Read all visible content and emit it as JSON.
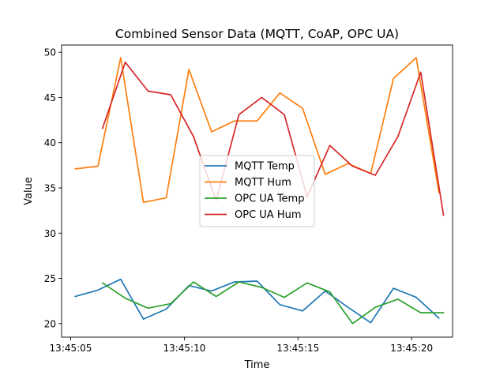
{
  "chart_data": {
    "type": "line",
    "title": "Combined Sensor Data (MQTT, CoAP, OPC UA)",
    "xlabel": "Time",
    "ylabel": "Value",
    "x_tick_labels": [
      "13:45:05",
      "13:45:10",
      "13:45:15",
      "13:45:20"
    ],
    "x_tick_values": [
      5,
      10,
      15,
      20
    ],
    "y_ticks": [
      20,
      25,
      30,
      35,
      40,
      45,
      50
    ],
    "xlim": [
      4.6,
      21.8
    ],
    "ylim": [
      18.5,
      50.8
    ],
    "legend_position": "center",
    "grid": false,
    "series": [
      {
        "name": "MQTT Temp",
        "color": "#1f77b4",
        "x": [
          5.2,
          6.2,
          7.2,
          8.2,
          9.2,
          10.2,
          11.2,
          12.2,
          13.2,
          14.2,
          15.2,
          16.2,
          17.2,
          18.2,
          19.2,
          20.2,
          21.2
        ],
        "y": [
          23.0,
          23.7,
          24.9,
          20.5,
          21.6,
          24.2,
          23.6,
          24.6,
          24.7,
          22.1,
          21.4,
          23.6,
          21.8,
          20.1,
          23.9,
          22.9,
          20.6
        ]
      },
      {
        "name": "MQTT Hum",
        "color": "#ff7f0e",
        "x": [
          5.2,
          6.2,
          7.2,
          8.2,
          9.2,
          10.2,
          11.2,
          12.2,
          13.2,
          14.2,
          15.2,
          16.2,
          17.2,
          18.2,
          19.2,
          20.2,
          21.2
        ],
        "y": [
          37.1,
          37.4,
          49.4,
          33.4,
          33.9,
          48.1,
          41.2,
          42.4,
          42.4,
          45.5,
          43.8,
          36.5,
          37.7,
          36.6,
          47.1,
          49.4,
          34.5
        ]
      },
      {
        "name": "OPC UA Temp",
        "color": "#2ca02c",
        "x": [
          6.4,
          7.4,
          8.4,
          9.4,
          10.4,
          11.4,
          12.4,
          13.4,
          14.4,
          15.4,
          16.4,
          17.4,
          18.4,
          19.4,
          20.4,
          21.4
        ],
        "y": [
          24.5,
          22.8,
          21.7,
          22.2,
          24.6,
          23.0,
          24.6,
          24.0,
          22.9,
          24.5,
          23.5,
          20.0,
          21.8,
          22.7,
          21.2,
          21.2
        ]
      },
      {
        "name": "OPC UA Hum",
        "color": "#d62728",
        "x": [
          6.4,
          7.4,
          8.4,
          9.4,
          10.4,
          11.4,
          12.4,
          13.4,
          14.4,
          15.4,
          16.4,
          17.4,
          18.4,
          19.4,
          20.4,
          21.4
        ],
        "y": [
          41.6,
          48.9,
          45.7,
          45.3,
          40.7,
          33.6,
          43.1,
          45.0,
          43.1,
          34.0,
          39.7,
          37.4,
          36.4,
          40.7,
          47.8,
          32.0
        ]
      }
    ]
  }
}
